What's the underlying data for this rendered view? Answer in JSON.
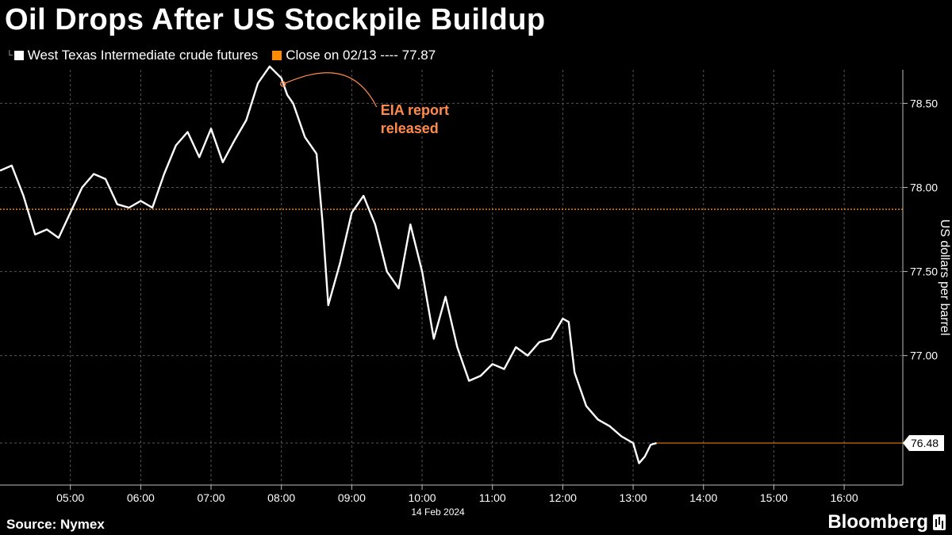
{
  "title": "Oil Drops After US Stockpile Buildup",
  "source": "Source: Nymex",
  "brand": "Bloomberg",
  "colors": {
    "series": "#ffffff",
    "close": "#ff8c00",
    "annotation": "#ff8a4c",
    "grid": "#555555"
  },
  "chart_data": {
    "type": "line",
    "legend": [
      {
        "name": "West Texas Intermediate crude futures",
        "color": "#ffffff"
      },
      {
        "name": "Close on 02/13 ---- 77.87",
        "color": "#ff8c00"
      }
    ],
    "ylabel": "US dollars per barrel",
    "date_label": "14 Feb 2024",
    "x_ticks": [
      "05:00",
      "06:00",
      "07:00",
      "08:00",
      "09:00",
      "10:00",
      "11:00",
      "12:00",
      "13:00",
      "14:00",
      "15:00",
      "16:00"
    ],
    "y_ticks": [
      "77.00",
      "77.50",
      "78.00",
      "78.50"
    ],
    "ylim": [
      76.23,
      78.7
    ],
    "xlim": [
      "04:00",
      "16:50"
    ],
    "reference_line": {
      "label": "Close on 02/13",
      "value": 77.87
    },
    "last_value_label": "76.48",
    "last_value": 76.48,
    "annotation": {
      "line1": "EIA report",
      "line2": "released",
      "time": "08:00",
      "value": 78.62
    },
    "x": [
      "04:00",
      "04:10",
      "04:20",
      "04:30",
      "04:40",
      "04:50",
      "05:00",
      "05:10",
      "05:20",
      "05:30",
      "05:40",
      "05:50",
      "06:00",
      "06:10",
      "06:20",
      "06:30",
      "06:40",
      "06:50",
      "07:00",
      "07:10",
      "07:20",
      "07:30",
      "07:40",
      "07:50",
      "08:00",
      "08:05",
      "08:10",
      "08:20",
      "08:30",
      "08:35",
      "08:40",
      "08:50",
      "09:00",
      "09:10",
      "09:20",
      "09:30",
      "09:40",
      "09:50",
      "10:00",
      "10:10",
      "10:20",
      "10:30",
      "10:40",
      "10:50",
      "11:00",
      "11:10",
      "11:20",
      "11:30",
      "11:40",
      "11:50",
      "12:00",
      "12:05",
      "12:10",
      "12:20",
      "12:30",
      "12:40",
      "12:50",
      "13:00",
      "13:05",
      "13:10",
      "13:15",
      "13:20"
    ],
    "values": [
      78.1,
      78.13,
      77.95,
      77.72,
      77.75,
      77.7,
      77.85,
      78.0,
      78.08,
      78.05,
      77.9,
      77.88,
      77.92,
      77.88,
      78.08,
      78.25,
      78.33,
      78.18,
      78.35,
      78.15,
      78.28,
      78.4,
      78.62,
      78.72,
      78.65,
      78.55,
      78.5,
      78.3,
      78.2,
      77.8,
      77.3,
      77.55,
      77.85,
      77.95,
      77.78,
      77.5,
      77.4,
      77.78,
      77.5,
      77.1,
      77.35,
      77.05,
      76.85,
      76.88,
      76.95,
      76.92,
      77.05,
      77.0,
      77.08,
      77.1,
      77.22,
      77.2,
      76.9,
      76.7,
      76.62,
      76.58,
      76.52,
      76.48,
      76.36,
      76.4,
      76.47,
      76.48
    ]
  }
}
